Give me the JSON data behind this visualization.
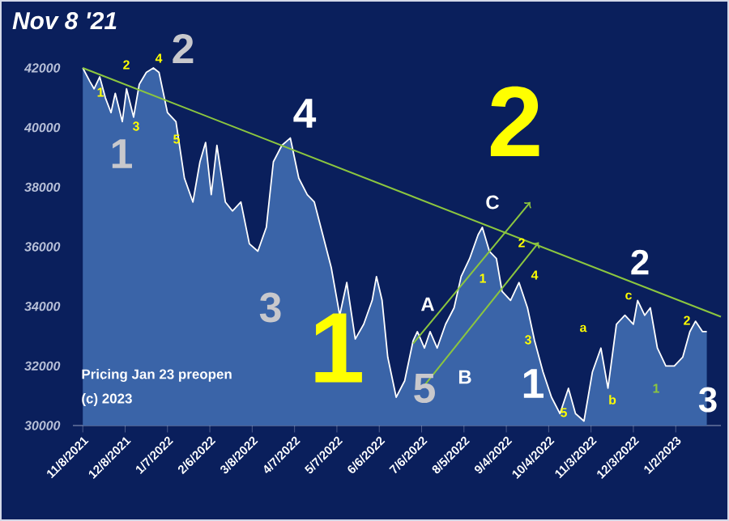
{
  "chart_data": {
    "type": "area",
    "title": "Nov 8 '21",
    "xlim": [
      "2021-11-01",
      "2023-02-03"
    ],
    "ylim": [
      30000,
      42000
    ],
    "yticks": [
      30000,
      32000,
      34000,
      36000,
      38000,
      40000,
      42000
    ],
    "xticks": [
      {
        "value": "2021-11-08",
        "label": "11/8/2021"
      },
      {
        "value": "2021-12-08",
        "label": "12/8/2021"
      },
      {
        "value": "2022-01-07",
        "label": "1/7/2022"
      },
      {
        "value": "2022-02-06",
        "label": "2/6/2022"
      },
      {
        "value": "2022-03-08",
        "label": "3/8/2022"
      },
      {
        "value": "2022-04-07",
        "label": "4/7/2022"
      },
      {
        "value": "2022-05-07",
        "label": "5/7/2022"
      },
      {
        "value": "2022-06-06",
        "label": "6/6/2022"
      },
      {
        "value": "2022-07-06",
        "label": "7/6/2022"
      },
      {
        "value": "2022-08-05",
        "label": "8/5/2022"
      },
      {
        "value": "2022-09-04",
        "label": "9/4/2022"
      },
      {
        "value": "2022-10-04",
        "label": "10/4/2022"
      },
      {
        "value": "2022-11-03",
        "label": "11/3/2022"
      },
      {
        "value": "2022-12-03",
        "label": "12/3/2022"
      },
      {
        "value": "2023-01-02",
        "label": "1/2/2023"
      }
    ],
    "series": [
      {
        "color": "#3a64a8",
        "x": [
          "2021-11-08",
          "2021-11-13",
          "2021-11-16",
          "2021-11-20",
          "2021-11-24",
          "2021-11-28",
          "2021-12-01",
          "2021-12-06",
          "2021-12-09",
          "2021-12-14",
          "2021-12-18",
          "2021-12-23",
          "2021-12-28",
          "2022-01-01",
          "2022-01-07",
          "2022-01-13",
          "2022-01-19",
          "2022-01-25",
          "2022-01-30",
          "2022-02-03",
          "2022-02-07",
          "2022-02-11",
          "2022-02-17",
          "2022-02-22",
          "2022-02-28",
          "2022-03-06",
          "2022-03-12",
          "2022-03-18",
          "2022-03-23",
          "2022-03-29",
          "2022-04-04",
          "2022-04-10",
          "2022-04-16",
          "2022-04-21",
          "2022-04-27",
          "2022-05-03",
          "2022-05-09",
          "2022-05-14",
          "2022-05-20",
          "2022-05-26",
          "2022-06-01",
          "2022-06-04",
          "2022-06-08",
          "2022-06-12",
          "2022-06-18",
          "2022-06-24",
          "2022-06-30",
          "2022-07-03",
          "2022-07-08",
          "2022-07-12",
          "2022-07-17",
          "2022-07-23",
          "2022-07-29",
          "2022-08-03",
          "2022-08-09",
          "2022-08-15",
          "2022-08-18",
          "2022-08-23",
          "2022-08-28",
          "2022-09-01",
          "2022-09-07",
          "2022-09-13",
          "2022-09-19",
          "2022-09-24",
          "2022-09-30",
          "2022-10-06",
          "2022-10-12",
          "2022-10-18",
          "2022-10-23",
          "2022-10-29",
          "2022-11-04",
          "2022-11-10",
          "2022-11-15",
          "2022-11-21",
          "2022-11-27",
          "2022-12-03",
          "2022-12-06",
          "2022-12-11",
          "2022-12-15",
          "2022-12-20",
          "2022-12-26",
          "2023-01-01",
          "2023-01-07",
          "2023-01-12",
          "2023-01-16",
          "2023-01-21",
          "2023-01-24"
        ],
        "values": [
          42000,
          41550,
          41300,
          41700,
          41000,
          40500,
          41150,
          40200,
          41300,
          40350,
          41450,
          41850,
          42000,
          41850,
          40500,
          40200,
          38300,
          37500,
          38850,
          39500,
          37750,
          39400,
          37500,
          37200,
          37500,
          36100,
          35850,
          36650,
          38850,
          39400,
          39650,
          38300,
          37750,
          37500,
          36400,
          35300,
          33700,
          34800,
          32900,
          33400,
          34200,
          35000,
          34200,
          32300,
          30950,
          31500,
          32850,
          33150,
          32600,
          33150,
          32600,
          33400,
          33950,
          35000,
          35600,
          36400,
          36650,
          35850,
          35600,
          34500,
          34200,
          34800,
          33950,
          32850,
          31800,
          30950,
          30400,
          31250,
          30400,
          30150,
          31800,
          32600,
          31250,
          33400,
          33700,
          33400,
          34200,
          33700,
          33950,
          32600,
          32000,
          32000,
          32300,
          33150,
          33500,
          33150,
          33150
        ]
      },
      {
        "type": "line",
        "color": "#8cc63f",
        "x": [
          "2021-11-08",
          "2023-02-03"
        ],
        "values": [
          42000,
          33650
        ]
      },
      {
        "type": "line",
        "color": "#8cc63f",
        "x": [
          "2022-06-30",
          "2022-09-21"
        ],
        "values": [
          32750,
          37500
        ]
      },
      {
        "type": "line",
        "color": "#8cc63f",
        "x": [
          "2022-07-08",
          "2022-09-27"
        ],
        "values": [
          31350,
          36150
        ]
      }
    ],
    "annotations": [
      "2",
      "1",
      "3",
      "4",
      "1",
      "2",
      "5",
      "1",
      "2",
      "3",
      "A",
      "B",
      "C",
      "1",
      "2",
      "3",
      "4",
      "5",
      "1",
      "2",
      "4",
      "3",
      "5",
      "a",
      "b",
      "c",
      "1",
      "2",
      "Pricing Jan 23 preopen",
      "(c) 2023"
    ]
  }
}
